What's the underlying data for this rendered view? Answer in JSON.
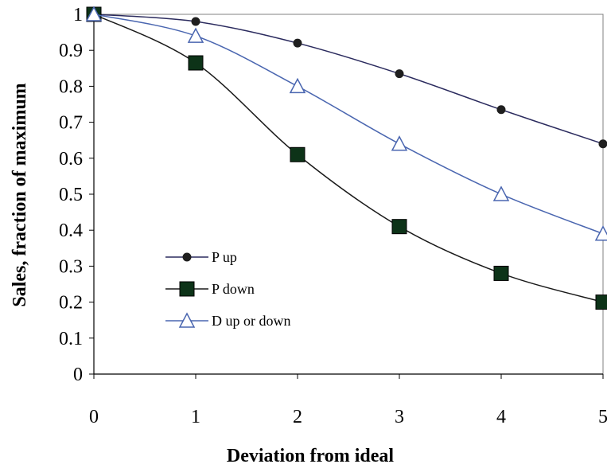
{
  "chart_data": {
    "type": "line",
    "xlabel": "Deviation from ideal",
    "ylabel": "Sales, fraction of maximum",
    "xlim": [
      0,
      5
    ],
    "ylim": [
      0,
      1
    ],
    "x_ticks": [
      "0",
      "1",
      "2",
      "3",
      "4",
      "5"
    ],
    "y_ticks": [
      "0",
      "0.1",
      "0.2",
      "0.3",
      "0.4",
      "0.5",
      "0.6",
      "0.7",
      "0.8",
      "0.9",
      "1"
    ],
    "grid": false,
    "legend_position": "lower-left",
    "x": [
      0,
      1,
      2,
      3,
      4,
      5
    ],
    "series": [
      {
        "name": "P up",
        "marker": "circle",
        "color": "#2b2b5e",
        "values": [
          1.0,
          0.98,
          0.92,
          0.835,
          0.735,
          0.64
        ]
      },
      {
        "name": "P down",
        "marker": "square",
        "color": "#1a1a1a",
        "marker_fill": "#0d3318",
        "values": [
          1.0,
          0.865,
          0.61,
          0.41,
          0.28,
          0.2
        ]
      },
      {
        "name": "D up or down",
        "marker": "triangle",
        "color": "#4a66b0",
        "marker_fill": "#ffffff",
        "values": [
          1.0,
          0.94,
          0.8,
          0.64,
          0.5,
          0.39
        ]
      }
    ]
  }
}
